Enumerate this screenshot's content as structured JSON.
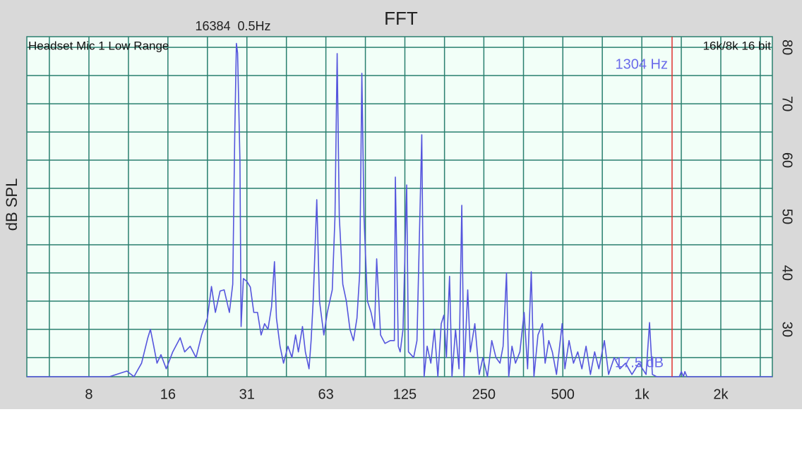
{
  "chart_data": {
    "type": "line",
    "title": "FFT",
    "subtitle": "16384  0.5Hz",
    "input_label": "Headset Mic 1 Low Range",
    "format_label": "16k/8k 16 bit",
    "y_label": "dB SPL",
    "x_scale": "log",
    "grid": true,
    "grid_color": "#2a7f6f",
    "plot_background": "#f2fff8",
    "xlim": [
      4.53,
      3144
    ],
    "ylim": [
      21.6,
      81.9
    ],
    "xticks": [
      {
        "value": 7.8125,
        "label": "8"
      },
      {
        "value": 15.625,
        "label": "16"
      },
      {
        "value": 31.25,
        "label": "31"
      },
      {
        "value": 62.5,
        "label": "63"
      },
      125,
      250,
      500,
      {
        "value": 1000,
        "label": "1k"
      },
      {
        "value": 2000,
        "label": "2k"
      }
    ],
    "xminor": [
      5.52,
      11.05,
      22.1,
      44.2,
      88.4,
      177,
      354,
      707,
      1414,
      2828
    ],
    "yticks": [
      30,
      40,
      50,
      60,
      70,
      80
    ],
    "yminor": [
      25,
      35,
      45,
      55,
      65,
      75
    ],
    "cursor": {
      "value": 1304,
      "label": "1304 Hz",
      "color": "#e03030",
      "label_color": "#6b6bea"
    },
    "level_label": "17.5 dB",
    "series": [
      {
        "color": "#5555dd",
        "x": [
          4.53,
          9.35,
          10.9,
          11.6,
          12.4,
          13.1,
          13.4,
          13.8,
          14.2,
          14.7,
          15.4,
          16.3,
          17.4,
          18.1,
          19.0,
          20.0,
          21.0,
          22.1,
          22.9,
          23.7,
          24.7,
          25.6,
          26.8,
          27.6,
          28.1,
          28.5,
          28.8,
          29.4,
          29.7,
          30.3,
          31.25,
          32.2,
          33.2,
          34.3,
          35.4,
          36.5,
          37.6,
          38.8,
          39.8,
          40.5,
          41.8,
          43.1,
          44.8,
          46.4,
          47.9,
          49.1,
          50.9,
          52.2,
          53.9,
          54.9,
          55.9,
          57.7,
          59.1,
          61.4,
          63.3,
          66.1,
          67.7,
          69.0,
          70.3,
          72.5,
          74.8,
          77.2,
          79.6,
          82.1,
          84.1,
          85.7,
          87.3,
          90.0,
          92.9,
          95.8,
          97.6,
          101,
          105,
          110,
          114,
          115,
          118,
          120,
          123,
          127,
          129,
          135,
          139,
          145,
          148,
          152,
          157,
          162,
          167,
          172,
          176,
          180,
          185,
          189,
          195,
          201,
          206,
          210,
          217,
          222,
          231,
          240,
          248,
          258,
          268,
          278,
          288,
          296,
          305,
          311,
          320,
          330,
          343,
          356,
          367,
          379,
          388,
          402,
          418,
          428,
          442,
          456,
          473,
          497,
          509,
          528,
          549,
          570,
          591,
          613,
          637,
          661,
          686,
          720,
          747,
          785,
          825,
          867,
          917,
          975,
          1038,
          1070,
          1097,
          1139,
          1389,
          1415,
          1441,
          1459,
          1486,
          3144
        ],
        "values": [
          21.6,
          21.6,
          22.6,
          21.6,
          24,
          28.5,
          30,
          27,
          24,
          25.5,
          23,
          26,
          28.5,
          26,
          27,
          25,
          29,
          32,
          37.6,
          33,
          36.8,
          37,
          33,
          38,
          65,
          80.7,
          79,
          60,
          30.5,
          39,
          38.5,
          37.5,
          33,
          33,
          29,
          31,
          30,
          34,
          42,
          32,
          27,
          24,
          27,
          25,
          29,
          26,
          30.5,
          26,
          23,
          28,
          35,
          53,
          35,
          29,
          33,
          37,
          50,
          78.9,
          50,
          38,
          35,
          30,
          28,
          32,
          40,
          75.4,
          50,
          35,
          33,
          30,
          42.5,
          29,
          27.5,
          28,
          28,
          57,
          27,
          26,
          30,
          55.6,
          26,
          25,
          28,
          64.5,
          21.6,
          27,
          24,
          30,
          21.6,
          31,
          32.5,
          25,
          39.4,
          21.6,
          30,
          23,
          52,
          21.6,
          37,
          26,
          31,
          22,
          25,
          21.6,
          28,
          25,
          24,
          27,
          40,
          21.6,
          27,
          24,
          26,
          33,
          23,
          40.2,
          21.6,
          29,
          31,
          24,
          28,
          26,
          22,
          31,
          23,
          28,
          24,
          26,
          23,
          27,
          22,
          26,
          23,
          28,
          22,
          25,
          23,
          24,
          22,
          24,
          22,
          31.2,
          22,
          21.6,
          21.6,
          22.5,
          21.6,
          22.5,
          21.6,
          21.6
        ]
      }
    ]
  }
}
